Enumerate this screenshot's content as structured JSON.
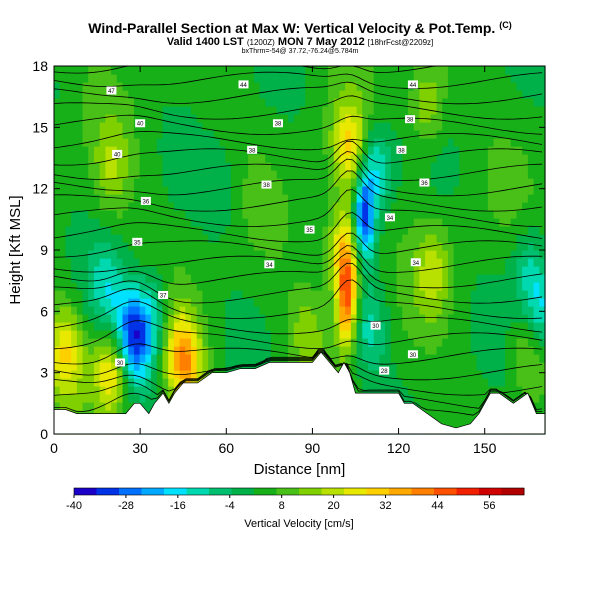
{
  "header": {
    "title": "Wind-Parallel Section at Max W: Vertical Velocity & Pot.Temp.",
    "title_unit": "(C)",
    "valid": "Valid 1400 LST",
    "valid_utc": "(1200Z)",
    "valid_date": "MON 7 May 2012",
    "forecast": "[18hrFcst@2209z]",
    "location": "bxThrm=-54@ 37.72,-76.24@5.784m"
  },
  "chart_data": {
    "type": "heatmap",
    "xlabel": "Distance [nm]",
    "ylabel": "Height [Kft MSL]",
    "xlim": [
      0,
      171
    ],
    "ylim": [
      0,
      18
    ],
    "xticks": [
      0,
      30,
      60,
      90,
      120,
      150
    ],
    "yticks": [
      0,
      3,
      6,
      9,
      12,
      15,
      18
    ],
    "colorbar": {
      "label": "Vertical Velocity [cm/s]",
      "ticks": [
        -40,
        -28,
        -16,
        -4,
        8,
        20,
        32,
        44,
        56
      ],
      "range": [
        -40,
        64
      ],
      "colors": [
        "#1a00c8",
        "#0033e6",
        "#0070ff",
        "#00a8ff",
        "#00e0ff",
        "#00d8b0",
        "#00c070",
        "#00b048",
        "#18b018",
        "#48c018",
        "#80d000",
        "#b8e000",
        "#e8e800",
        "#ffd000",
        "#ffa800",
        "#ff8000",
        "#ff5000",
        "#f02000",
        "#d00000",
        "#b00000"
      ]
    },
    "terrain": [
      [
        0,
        1.2
      ],
      [
        4,
        1.2
      ],
      [
        8,
        1.0
      ],
      [
        15,
        1.0
      ],
      [
        18,
        1.0
      ],
      [
        25,
        1.0
      ],
      [
        28,
        1.5
      ],
      [
        30,
        1.5
      ],
      [
        33,
        1.0
      ],
      [
        35,
        1.5
      ],
      [
        38,
        2.0
      ],
      [
        40,
        1.5
      ],
      [
        42,
        2.0
      ],
      [
        45,
        2.5
      ],
      [
        50,
        2.5
      ],
      [
        55,
        3.0
      ],
      [
        60,
        3.0
      ],
      [
        65,
        3.2
      ],
      [
        70,
        3.2
      ],
      [
        75,
        3.5
      ],
      [
        85,
        3.5
      ],
      [
        90,
        3.5
      ],
      [
        93,
        4.0
      ],
      [
        96,
        3.5
      ],
      [
        99,
        3.0
      ],
      [
        101,
        3.5
      ],
      [
        103,
        3.0
      ],
      [
        105,
        2.0
      ],
      [
        110,
        2.0
      ],
      [
        118,
        2.0
      ],
      [
        120,
        2.0
      ],
      [
        122,
        1.5
      ],
      [
        125,
        1.5
      ],
      [
        130,
        1.0
      ],
      [
        135,
        0.5
      ],
      [
        140,
        0.3
      ],
      [
        145,
        0.5
      ],
      [
        148,
        1.0
      ],
      [
        152,
        2.0
      ],
      [
        155,
        2.0
      ],
      [
        160,
        1.5
      ],
      [
        165,
        2.0
      ],
      [
        168,
        1.0
      ],
      [
        171,
        1.0
      ]
    ],
    "features": [
      {
        "x": 102,
        "y": 6.5,
        "w": 40
      },
      {
        "x": 101,
        "y": 9,
        "w": 28
      },
      {
        "x": 108,
        "y": 10.5,
        "w": -36
      },
      {
        "x": 112,
        "y": 13,
        "w": -20
      },
      {
        "x": 103,
        "y": 14,
        "w": 24
      },
      {
        "x": 26,
        "y": 5,
        "w": -24
      },
      {
        "x": 30,
        "y": 4.5,
        "w": -20
      },
      {
        "x": 18,
        "y": 7,
        "w": -14
      },
      {
        "x": 35,
        "y": 6,
        "w": -12
      },
      {
        "x": 20,
        "y": 3.2,
        "w": 26
      },
      {
        "x": 4,
        "y": 4,
        "w": 22
      },
      {
        "x": 44,
        "y": 4,
        "w": 22
      },
      {
        "x": 47,
        "y": 3,
        "w": 16
      },
      {
        "x": 110,
        "y": 5,
        "w": -14
      },
      {
        "x": 170,
        "y": 6,
        "w": -18
      },
      {
        "x": 165,
        "y": 8,
        "w": -12
      },
      {
        "x": 130,
        "y": 16,
        "w": 14
      },
      {
        "x": 58,
        "y": 12,
        "w": -6
      },
      {
        "x": 20,
        "y": 13,
        "w": 12
      },
      {
        "x": 88,
        "y": 5,
        "w": 10
      },
      {
        "x": 132,
        "y": 8,
        "w": 14
      },
      {
        "x": 165,
        "y": 4,
        "w": 12
      }
    ],
    "contour_labels": [
      {
        "x": 20,
        "y": 16.8,
        "text": "47"
      },
      {
        "x": 66,
        "y": 17.1,
        "text": "44"
      },
      {
        "x": 125,
        "y": 17.1,
        "text": "44"
      },
      {
        "x": 30,
        "y": 15.2,
        "text": "40"
      },
      {
        "x": 78,
        "y": 15.2,
        "text": "38"
      },
      {
        "x": 124,
        "y": 15.4,
        "text": "38"
      },
      {
        "x": 22,
        "y": 13.7,
        "text": "40"
      },
      {
        "x": 69,
        "y": 13.9,
        "text": "38"
      },
      {
        "x": 121,
        "y": 13.9,
        "text": "38"
      },
      {
        "x": 32,
        "y": 11.4,
        "text": "36"
      },
      {
        "x": 74,
        "y": 12.2,
        "text": "38"
      },
      {
        "x": 129,
        "y": 12.3,
        "text": "36"
      },
      {
        "x": 29,
        "y": 9.4,
        "text": "35"
      },
      {
        "x": 89,
        "y": 10.0,
        "text": "35"
      },
      {
        "x": 117,
        "y": 10.6,
        "text": "34"
      },
      {
        "x": 75,
        "y": 8.3,
        "text": "34"
      },
      {
        "x": 126,
        "y": 8.4,
        "text": "34"
      },
      {
        "x": 38,
        "y": 6.8,
        "text": "37"
      },
      {
        "x": 112,
        "y": 5.3,
        "text": "30"
      },
      {
        "x": 125,
        "y": 3.9,
        "text": "30"
      },
      {
        "x": 23,
        "y": 3.5,
        "text": "30"
      },
      {
        "x": 115,
        "y": 3.1,
        "text": "28"
      }
    ]
  }
}
